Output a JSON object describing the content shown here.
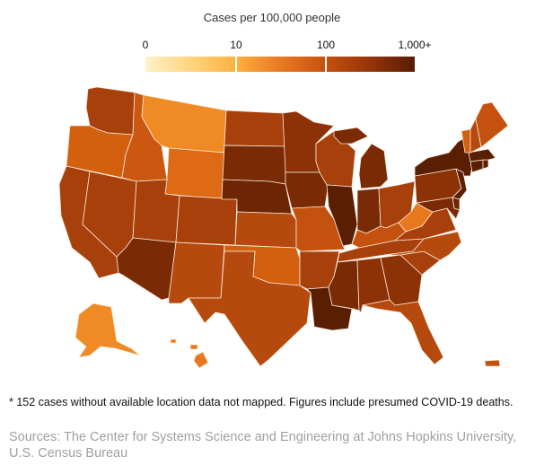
{
  "legend": {
    "title": "Cases per 100,000 people",
    "ticks": [
      "0",
      "10",
      "100",
      "1,000+"
    ],
    "scale": "log",
    "colors": [
      "#fff1c8",
      "#ffb240",
      "#e06a1c",
      "#9b3608",
      "#571d04"
    ]
  },
  "map": {
    "region": "United States",
    "state_colors": {
      "WA": "#a8400c",
      "OR": "#d2600f",
      "CA": "#a8400c",
      "NV": "#a8400c",
      "ID": "#cc5710",
      "MT": "#f08a25",
      "WY": "#de6a15",
      "UT": "#a8400c",
      "AZ": "#7a2a05",
      "CO": "#a8400c",
      "NM": "#b5490e",
      "ND": "#a8400c",
      "SD": "#7a2a05",
      "NE": "#6e2504",
      "KS": "#b5490e",
      "OK": "#d2600f",
      "TX": "#b5490e",
      "MN": "#8d3207",
      "IA": "#7a2a05",
      "MO": "#c4510e",
      "AR": "#a8400c",
      "LA": "#5a1f03",
      "WI": "#a8400c",
      "IL": "#5a1f03",
      "MI": "#7a2a05",
      "IN": "#7a2a05",
      "OH": "#a8400c",
      "KY": "#c4510e",
      "TN": "#a8400c",
      "MS": "#7a2a05",
      "AL": "#8d3207",
      "GA": "#8d3207",
      "FL": "#b5490e",
      "SC": "#a8400c",
      "NC": "#b5490e",
      "VA": "#a8400c",
      "WV": "#e8781d",
      "PA": "#8d3207",
      "NY": "#5a1f03",
      "NJ": "#5a1f03",
      "DE": "#6e2504",
      "MD": "#7a2a05",
      "CT": "#5a1f03",
      "RI": "#5a1f03",
      "MA": "#5a1f03",
      "VT": "#d2600f",
      "NH": "#b5490e",
      "ME": "#c4510e",
      "AK": "#f08a25",
      "HI": "#e8781d",
      "PR": "#c4510e"
    }
  },
  "footnote": "* 152 cases without available location data not mapped. Figures include presumed COVID-19 deaths.",
  "sources": "Sources: The Center for Systems Science and Engineering at Johns Hopkins University, U.S. Census Bureau"
}
